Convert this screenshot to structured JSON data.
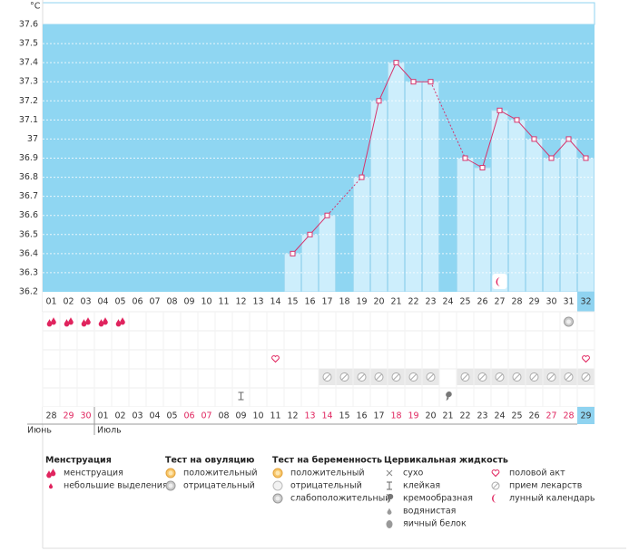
{
  "chart_data": {
    "type": "line",
    "y_unit": "°C",
    "categories": [
      "01",
      "02",
      "03",
      "04",
      "05",
      "06",
      "07",
      "08",
      "09",
      "10",
      "11",
      "12",
      "13",
      "14",
      "15",
      "16",
      "17",
      "18",
      "19",
      "20",
      "21",
      "22",
      "23",
      "24",
      "25",
      "26",
      "27",
      "28",
      "29",
      "30",
      "31",
      "32"
    ],
    "values": [
      null,
      null,
      null,
      null,
      null,
      null,
      null,
      null,
      null,
      null,
      null,
      null,
      null,
      null,
      36.4,
      36.5,
      36.6,
      null,
      36.8,
      37.2,
      37.4,
      37.3,
      37.3,
      null,
      36.9,
      36.85,
      37.15,
      37.1,
      37.0,
      36.9,
      37.0,
      36.9
    ],
    "ylim": [
      36.2,
      37.6
    ],
    "yticks": [
      36.2,
      36.3,
      36.4,
      36.5,
      36.6,
      36.7,
      36.8,
      36.9,
      37,
      37.1,
      37.2,
      37.3,
      37.4,
      37.5,
      37.6
    ],
    "grid": true,
    "line_color": "#d6336c",
    "bar_color": "#cdeefc",
    "background_color": "#8fd6f2",
    "symbols": {
      "menstruation": [
        1,
        2,
        3,
        4,
        5
      ],
      "ovulation_negative": [
        31
      ],
      "intercourse": [
        14,
        32
      ],
      "medication": [
        17,
        18,
        19,
        20,
        21,
        22,
        23,
        25,
        26,
        27,
        28,
        29,
        30,
        31,
        32
      ],
      "sticky": [
        12
      ],
      "creamy": [
        24
      ],
      "moon": [
        27
      ]
    },
    "dates": [
      "28",
      "29",
      "30",
      "01",
      "02",
      "03",
      "04",
      "05",
      "06",
      "07",
      "08",
      "09",
      "10",
      "11",
      "12",
      "13",
      "14",
      "15",
      "16",
      "17",
      "18",
      "19",
      "20",
      "21",
      "22",
      "23",
      "24",
      "25",
      "26",
      "27",
      "28",
      "29"
    ],
    "weekends": [
      false,
      true,
      true,
      false,
      false,
      false,
      false,
      false,
      true,
      true,
      false,
      false,
      false,
      false,
      false,
      true,
      true,
      false,
      false,
      false,
      true,
      true,
      false,
      false,
      false,
      false,
      false,
      false,
      false,
      true,
      true,
      false
    ],
    "weekend_color": "#e0245e",
    "months": [
      {
        "label": "Июнь",
        "start": 0
      },
      {
        "label": "Июль",
        "start": 3
      }
    ]
  },
  "legend": [
    {
      "title": "Менструация",
      "items": [
        "менструация",
        "небольшие выделения"
      ]
    },
    {
      "title": "Тест на овуляцию",
      "items": [
        "положительный",
        "отрицательный"
      ]
    },
    {
      "title": "Тест на беременность",
      "items": [
        "положительный",
        "отрицательный",
        "слабоположительный"
      ]
    },
    {
      "title": "Цервикальная жидкость",
      "items": [
        "сухо",
        "клейкая",
        "кремообразная",
        "водянистая",
        "яичный белок"
      ]
    },
    {
      "items": [
        "половой акт",
        "прием лекарств",
        "лунный календарь"
      ]
    }
  ]
}
